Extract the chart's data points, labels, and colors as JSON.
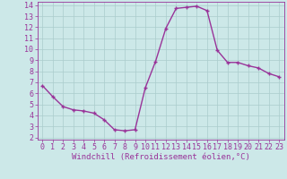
{
  "x": [
    0,
    1,
    2,
    3,
    4,
    5,
    6,
    7,
    8,
    9,
    10,
    11,
    12,
    13,
    14,
    15,
    16,
    17,
    18,
    19,
    20,
    21,
    22,
    23
  ],
  "y": [
    6.7,
    5.7,
    4.8,
    4.5,
    4.4,
    4.2,
    3.6,
    2.7,
    2.6,
    2.7,
    6.5,
    8.9,
    11.9,
    13.7,
    13.8,
    13.9,
    13.5,
    9.9,
    8.8,
    8.8,
    8.5,
    8.3,
    7.8,
    7.5
  ],
  "line_color": "#993399",
  "marker": "+",
  "marker_size": 3.5,
  "background_color": "#cce8e8",
  "grid_color": "#aacccc",
  "xlabel": "Windchill (Refroidissement éolien,°C)",
  "xlim": [
    -0.5,
    23.5
  ],
  "ylim": [
    1.8,
    14.3
  ],
  "yticks": [
    2,
    3,
    4,
    5,
    6,
    7,
    8,
    9,
    10,
    11,
    12,
    13,
    14
  ],
  "xticks": [
    0,
    1,
    2,
    3,
    4,
    5,
    6,
    7,
    8,
    9,
    10,
    11,
    12,
    13,
    14,
    15,
    16,
    17,
    18,
    19,
    20,
    21,
    22,
    23
  ],
  "tick_color": "#993399",
  "label_color": "#993399",
  "spine_color": "#993399",
  "font_family": "monospace",
  "xlabel_fontsize": 6.5,
  "tick_fontsize": 6.0,
  "linewidth": 1.0,
  "marker_edge_width": 1.0
}
